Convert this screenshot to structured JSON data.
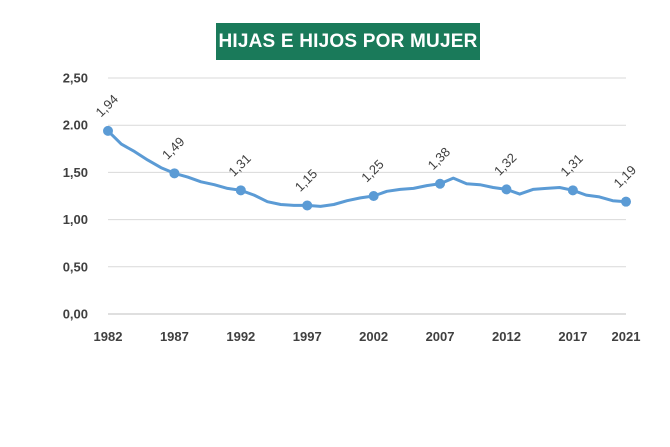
{
  "chart_data": {
    "type": "line",
    "title": "HIJAS E HIJOS POR MUJER",
    "xlabel": "",
    "ylabel": "",
    "ylim": [
      0,
      2.5
    ],
    "yticks": [
      "0,00",
      "0,50",
      "1,00",
      "1,50",
      "2.00",
      "2,50"
    ],
    "xticks": [
      "1982",
      "1987",
      "1992",
      "1997",
      "2002",
      "2007",
      "2012",
      "2017",
      "2021"
    ],
    "grid": true,
    "legend": "none",
    "line_color": "#5b9bd5",
    "series": [
      {
        "x": [
          1982,
          1983,
          1984,
          1985,
          1986,
          1987,
          1988,
          1989,
          1990,
          1991,
          1992,
          1993,
          1994,
          1995,
          1996,
          1997,
          1998,
          1999,
          2000,
          2001,
          2002,
          2003,
          2004,
          2005,
          2006,
          2007,
          2008,
          2009,
          2010,
          2011,
          2012,
          2013,
          2014,
          2015,
          2016,
          2017,
          2018,
          2019,
          2020,
          2021
        ],
        "values": [
          1.94,
          1.8,
          1.72,
          1.63,
          1.55,
          1.49,
          1.45,
          1.4,
          1.37,
          1.33,
          1.31,
          1.26,
          1.19,
          1.16,
          1.15,
          1.15,
          1.14,
          1.16,
          1.2,
          1.23,
          1.25,
          1.3,
          1.32,
          1.33,
          1.36,
          1.38,
          1.44,
          1.38,
          1.37,
          1.34,
          1.32,
          1.27,
          1.32,
          1.33,
          1.34,
          1.31,
          1.26,
          1.24,
          1.2,
          1.19
        ]
      }
    ],
    "markers": [
      {
        "x": 1982,
        "y": 1.94,
        "label": "1,94"
      },
      {
        "x": 1987,
        "y": 1.49,
        "label": "1,49"
      },
      {
        "x": 1992,
        "y": 1.31,
        "label": "1,31"
      },
      {
        "x": 1997,
        "y": 1.15,
        "label": "1,15"
      },
      {
        "x": 2002,
        "y": 1.25,
        "label": "1,25"
      },
      {
        "x": 2007,
        "y": 1.38,
        "label": "1,38"
      },
      {
        "x": 2012,
        "y": 1.32,
        "label": "1,32"
      },
      {
        "x": 2017,
        "y": 1.31,
        "label": "1,31"
      },
      {
        "x": 2021,
        "y": 1.19,
        "label": "1,19"
      }
    ]
  }
}
